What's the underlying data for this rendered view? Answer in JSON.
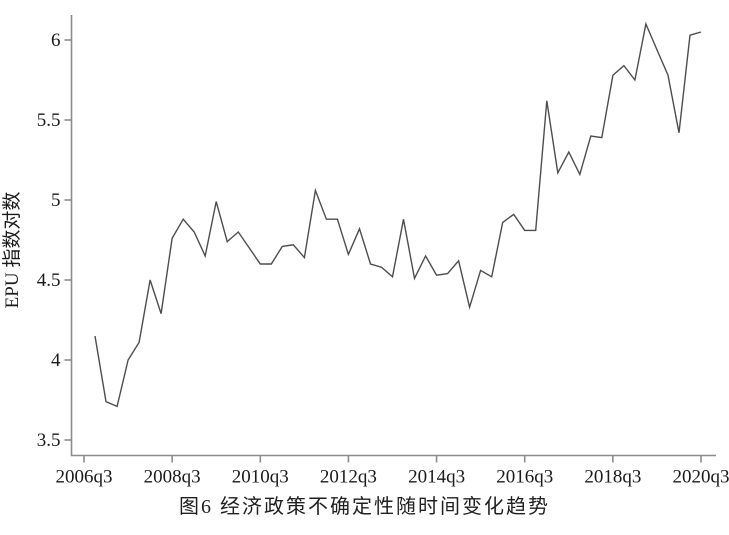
{
  "figure": {
    "caption": "图6  经济政策不确定性随时间变化趋势",
    "y_axis_label": "EPU 指数对数"
  },
  "colors": {
    "line": "#4d4d4d",
    "axis": "#8c8c8c",
    "tick_text": "#1a1a1a"
  },
  "chart_data": {
    "type": "line",
    "title": "图6  经济政策不确定性随时间变化趋势",
    "xlabel": "",
    "ylabel": "EPU 指数对数",
    "legend": "none",
    "grid": false,
    "ylim": [
      3.4,
      6.15
    ],
    "y_ticks": [
      3.5,
      4,
      4.5,
      5,
      5.5,
      6
    ],
    "y_tick_labels": [
      "3.5",
      "4",
      "4.5",
      "5",
      "5.5",
      "6"
    ],
    "x_tick_labels": [
      "2006q3",
      "2008q3",
      "2010q3",
      "2012q3",
      "2014q3",
      "2016q3",
      "2018q3",
      "2020q3"
    ],
    "x_tick_step_quarters": 8,
    "x": [
      "2006q4",
      "2007q1",
      "2007q2",
      "2007q3",
      "2007q4",
      "2008q1",
      "2008q2",
      "2008q3",
      "2008q4",
      "2009q1",
      "2009q2",
      "2009q3",
      "2009q4",
      "2010q1",
      "2010q2",
      "2010q3",
      "2010q4",
      "2011q1",
      "2011q2",
      "2011q3",
      "2011q4",
      "2012q1",
      "2012q2",
      "2012q3",
      "2012q4",
      "2013q1",
      "2013q2",
      "2013q3",
      "2013q4",
      "2014q1",
      "2014q2",
      "2014q3",
      "2014q4",
      "2015q1",
      "2015q2",
      "2015q3",
      "2015q4",
      "2016q1",
      "2016q2",
      "2016q3",
      "2016q4",
      "2017q1",
      "2017q2",
      "2017q3",
      "2017q4",
      "2018q1",
      "2018q2",
      "2018q3",
      "2018q4",
      "2019q1",
      "2019q2",
      "2019q3",
      "2019q4",
      "2020q1",
      "2020q2",
      "2020q3"
    ],
    "values": [
      4.15,
      3.74,
      3.71,
      4.0,
      4.11,
      4.5,
      4.29,
      4.76,
      4.88,
      4.8,
      4.65,
      4.99,
      4.74,
      4.8,
      4.7,
      4.6,
      4.6,
      4.71,
      4.72,
      4.64,
      5.06,
      4.88,
      4.88,
      4.66,
      4.82,
      4.6,
      4.58,
      4.52,
      4.88,
      4.51,
      4.65,
      4.53,
      4.54,
      4.62,
      4.33,
      4.56,
      4.52,
      4.86,
      4.91,
      4.81,
      4.81,
      5.62,
      5.17,
      5.3,
      5.16,
      5.4,
      5.39,
      5.78,
      5.84,
      5.75,
      6.1,
      5.94,
      5.78,
      5.42,
      6.03,
      6.05
    ]
  }
}
